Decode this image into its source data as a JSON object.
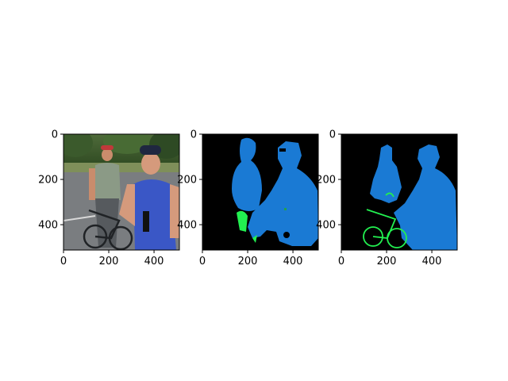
{
  "figure": {
    "panels": [
      {
        "id": "rgb-photo",
        "kind": "photo"
      },
      {
        "id": "predicted-mask",
        "kind": "segmentation"
      },
      {
        "id": "ground-truth-mask",
        "kind": "segmentation"
      }
    ],
    "x_ticks": [
      "0",
      "200",
      "400"
    ],
    "y_ticks": [
      "0",
      "200",
      "400"
    ],
    "x_tick_values": [
      0,
      200,
      400
    ],
    "y_tick_values": [
      0,
      200,
      400
    ],
    "axis_extent": [
      0,
      512
    ],
    "colors": {
      "background": "#000000",
      "person": "#1a7ad4",
      "bicycle": "#22f050",
      "axis": "#000000"
    }
  }
}
